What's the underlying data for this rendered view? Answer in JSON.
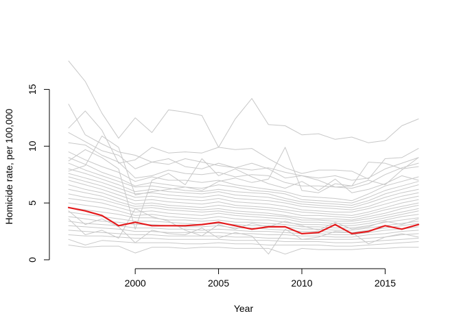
{
  "chart_data": {
    "type": "line",
    "title": "",
    "xlabel": "Year",
    "ylabel": "Homicide rate, per 100,000",
    "xlim": [
      1996,
      2017
    ],
    "ylim": [
      0,
      17.5
    ],
    "x_ticks": [
      2000,
      2005,
      2010,
      2015
    ],
    "y_ticks": [
      0,
      5,
      10,
      15
    ],
    "x": [
      1996,
      1997,
      1998,
      1999,
      2000,
      2001,
      2002,
      2003,
      2004,
      2005,
      2006,
      2007,
      2008,
      2009,
      2010,
      2011,
      2012,
      2013,
      2014,
      2015,
      2016,
      2017
    ],
    "colors": {
      "background": "#c8c8c8",
      "highlight": "#e41a1c"
    },
    "highlight_series": {
      "name": "highlighted",
      "values": [
        4.6,
        4.3,
        3.9,
        3.0,
        3.3,
        3.0,
        3.0,
        3.0,
        3.1,
        3.3,
        3.0,
        2.7,
        2.9,
        2.9,
        2.3,
        2.4,
        3.1,
        2.3,
        2.5,
        3.0,
        2.7,
        3.1
      ]
    },
    "background_series": [
      {
        "name": "s1",
        "values": [
          17.5,
          15.7,
          12.9,
          10.7,
          12.5,
          11.2,
          13.2,
          13.0,
          12.7,
          9.9,
          12.4,
          14.2,
          11.9,
          11.8,
          11.0,
          11.1,
          10.6,
          10.8,
          10.3,
          10.5,
          11.8,
          12.4
        ]
      },
      {
        "name": "s2",
        "values": [
          13.7,
          11.0,
          10.2,
          9.5,
          9.2,
          8.6,
          8.4,
          8.9,
          8.6,
          8.3,
          8.1,
          7.9,
          8.1,
          7.7,
          7.4,
          7.2,
          7.4,
          7.0,
          7.2,
          8.0,
          8.5,
          9.0
        ]
      },
      {
        "name": "s3",
        "values": [
          11.6,
          13.1,
          11.4,
          8.5,
          8.8,
          9.9,
          9.4,
          9.5,
          9.4,
          9.9,
          9.7,
          9.8,
          8.9,
          8.1,
          7.6,
          7.9,
          7.9,
          7.8,
          7.1,
          8.9,
          9.0,
          9.8
        ]
      },
      {
        "name": "s4",
        "values": [
          11.2,
          10.4,
          9.6,
          9.2,
          8.0,
          8.6,
          8.9,
          8.2,
          8.0,
          8.5,
          8.1,
          8.5,
          8.0,
          7.2,
          7.4,
          7.0,
          6.4,
          6.5,
          8.6,
          8.5,
          8.0,
          8.2
        ]
      },
      {
        "name": "s5",
        "values": [
          10.3,
          10.1,
          9.2,
          8.6,
          7.2,
          7.4,
          7.9,
          7.6,
          7.5,
          7.7,
          7.3,
          7.5,
          7.4,
          6.8,
          6.5,
          6.5,
          6.4,
          6.3,
          6.7,
          7.5,
          8.1,
          8.5
        ]
      },
      {
        "name": "s6",
        "values": [
          9.5,
          8.8,
          8.2,
          7.7,
          6.9,
          7.3,
          7.0,
          7.0,
          6.8,
          7.0,
          6.6,
          6.4,
          6.2,
          6.0,
          5.6,
          5.5,
          5.4,
          5.2,
          5.8,
          6.5,
          6.9,
          7.3
        ]
      },
      {
        "name": "s7",
        "values": [
          9.0,
          8.4,
          7.7,
          7.2,
          6.5,
          6.8,
          6.6,
          6.4,
          6.3,
          6.6,
          6.4,
          6.1,
          6.0,
          5.8,
          5.3,
          5.2,
          5.1,
          5.0,
          5.5,
          6.1,
          6.5,
          6.9
        ]
      },
      {
        "name": "s8",
        "values": [
          8.5,
          7.9,
          7.4,
          6.9,
          6.4,
          6.5,
          6.3,
          6.1,
          6.0,
          6.2,
          6.0,
          5.9,
          5.8,
          5.4,
          5.1,
          5.0,
          4.9,
          4.8,
          5.2,
          5.8,
          6.2,
          6.6
        ]
      },
      {
        "name": "s9",
        "values": [
          8.0,
          7.6,
          7.1,
          6.6,
          6.0,
          6.2,
          6.0,
          5.9,
          5.8,
          6.0,
          5.7,
          5.6,
          5.5,
          5.2,
          4.9,
          4.8,
          4.7,
          4.6,
          5.0,
          5.5,
          5.9,
          6.2
        ]
      },
      {
        "name": "s10",
        "values": [
          7.6,
          7.2,
          6.8,
          6.3,
          5.8,
          5.9,
          5.7,
          5.6,
          5.5,
          5.7,
          5.4,
          5.3,
          5.2,
          5.0,
          4.7,
          4.6,
          4.5,
          4.4,
          4.7,
          5.2,
          5.6,
          5.9
        ]
      },
      {
        "name": "s11",
        "values": [
          7.3,
          6.9,
          6.5,
          6.0,
          5.5,
          5.6,
          5.4,
          5.3,
          5.2,
          5.4,
          5.1,
          5.0,
          4.9,
          4.7,
          4.4,
          4.3,
          4.2,
          4.2,
          4.5,
          4.9,
          5.3,
          5.6
        ]
      },
      {
        "name": "s12",
        "values": [
          7.0,
          6.6,
          6.2,
          5.7,
          5.2,
          5.3,
          5.1,
          5.0,
          4.9,
          5.1,
          4.8,
          4.7,
          4.6,
          4.4,
          4.2,
          4.1,
          4.0,
          3.9,
          4.2,
          4.6,
          5.0,
          5.3
        ]
      },
      {
        "name": "s13",
        "values": [
          6.6,
          6.2,
          5.9,
          5.4,
          4.9,
          5.0,
          4.8,
          4.7,
          4.6,
          4.8,
          4.6,
          4.5,
          4.4,
          4.2,
          3.9,
          3.9,
          3.8,
          3.7,
          4.0,
          4.4,
          4.7,
          5.0
        ]
      },
      {
        "name": "s14",
        "values": [
          6.2,
          5.9,
          5.6,
          5.1,
          4.7,
          4.8,
          4.6,
          4.5,
          4.4,
          4.5,
          4.3,
          4.2,
          4.1,
          3.9,
          3.7,
          3.6,
          3.6,
          3.5,
          3.8,
          4.1,
          4.5,
          4.8
        ]
      },
      {
        "name": "s15",
        "values": [
          5.8,
          5.5,
          5.3,
          4.9,
          4.5,
          4.6,
          4.4,
          4.3,
          4.2,
          4.3,
          4.1,
          4.0,
          3.9,
          3.8,
          3.5,
          3.5,
          3.4,
          3.4,
          3.6,
          3.9,
          4.2,
          4.5
        ]
      },
      {
        "name": "s16",
        "values": [
          5.4,
          5.2,
          5.0,
          4.6,
          4.2,
          4.3,
          4.1,
          4.0,
          3.9,
          4.1,
          3.9,
          3.8,
          3.7,
          3.6,
          3.3,
          3.3,
          3.2,
          3.2,
          3.4,
          3.7,
          4.0,
          4.3
        ]
      },
      {
        "name": "s17",
        "values": [
          5.0,
          4.8,
          4.6,
          4.3,
          3.9,
          4.0,
          3.8,
          3.7,
          3.6,
          3.8,
          3.6,
          3.5,
          3.5,
          3.3,
          3.1,
          3.1,
          3.0,
          3.0,
          3.2,
          3.5,
          3.8,
          4.0
        ]
      },
      {
        "name": "s18",
        "values": [
          4.6,
          4.4,
          4.2,
          4.0,
          3.7,
          3.7,
          3.5,
          3.5,
          3.4,
          3.5,
          3.3,
          3.3,
          3.2,
          3.1,
          2.9,
          2.9,
          2.8,
          2.8,
          3.0,
          3.3,
          3.5,
          3.7
        ]
      },
      {
        "name": "s19",
        "values": [
          4.2,
          4.0,
          3.8,
          3.6,
          3.4,
          3.4,
          3.3,
          3.2,
          3.1,
          3.2,
          3.1,
          3.0,
          3.0,
          2.9,
          2.7,
          2.7,
          2.6,
          2.6,
          2.8,
          3.0,
          3.2,
          3.4
        ]
      },
      {
        "name": "s20",
        "values": [
          3.8,
          3.6,
          3.4,
          3.3,
          3.1,
          3.1,
          3.0,
          2.9,
          2.9,
          3.0,
          2.8,
          2.8,
          2.7,
          2.6,
          2.5,
          2.5,
          2.4,
          2.4,
          2.6,
          2.8,
          3.0,
          3.2
        ]
      },
      {
        "name": "s21",
        "values": [
          3.4,
          3.2,
          3.1,
          3.0,
          2.8,
          2.8,
          2.7,
          2.7,
          2.6,
          2.7,
          2.6,
          2.5,
          2.5,
          2.4,
          2.3,
          2.3,
          2.2,
          2.2,
          2.4,
          2.6,
          2.7,
          2.9
        ]
      },
      {
        "name": "s22",
        "values": [
          3.0,
          2.9,
          2.8,
          2.7,
          2.5,
          2.5,
          2.4,
          2.4,
          2.4,
          2.4,
          2.3,
          2.3,
          2.2,
          2.2,
          2.1,
          2.1,
          2.0,
          2.0,
          2.2,
          2.3,
          2.5,
          2.6
        ]
      },
      {
        "name": "s23",
        "values": [
          2.6,
          2.5,
          2.4,
          2.3,
          2.2,
          2.2,
          2.1,
          2.1,
          2.1,
          2.1,
          2.0,
          2.0,
          1.9,
          1.9,
          1.8,
          1.8,
          1.8,
          1.8,
          1.9,
          2.0,
          2.2,
          2.3
        ]
      },
      {
        "name": "s24",
        "values": [
          2.2,
          2.1,
          2.1,
          2.0,
          1.9,
          1.9,
          1.8,
          1.8,
          1.8,
          1.8,
          1.7,
          1.7,
          1.7,
          1.6,
          1.6,
          1.6,
          1.5,
          1.5,
          1.6,
          1.7,
          1.8,
          1.9
        ]
      },
      {
        "name": "s25",
        "values": [
          1.8,
          1.3,
          1.7,
          1.6,
          1.5,
          1.5,
          1.5,
          1.4,
          1.4,
          1.5,
          1.4,
          1.4,
          1.3,
          1.3,
          1.3,
          1.3,
          1.2,
          1.2,
          1.3,
          1.4,
          1.5,
          1.6
        ]
      },
      {
        "name": "s26",
        "values": [
          1.3,
          1.1,
          1.2,
          1.2,
          0.6,
          1.1,
          1.1,
          1.0,
          1.1,
          1.1,
          1.0,
          1.0,
          1.0,
          0.5,
          1.0,
          0.9,
          0.9,
          0.9,
          1.0,
          1.0,
          1.1,
          1.1
        ]
      },
      {
        "name": "s27",
        "values": [
          7.8,
          8.3,
          10.9,
          9.9,
          5.7,
          6.0,
          6.2,
          6.4,
          6.1,
          6.9,
          7.2,
          6.8,
          7.1,
          9.9,
          6.1,
          5.9,
          6.7,
          6.5,
          7.0,
          6.6,
          7.9,
          9.0
        ]
      },
      {
        "name": "s28",
        "values": [
          8.7,
          9.7,
          9.0,
          8.0,
          2.7,
          7.0,
          7.6,
          6.6,
          8.9,
          7.4,
          8.0,
          7.3,
          6.7,
          6.3,
          6.9,
          6.1,
          7.1,
          5.9,
          6.2,
          6.7,
          7.4,
          7.0
        ]
      },
      {
        "name": "s29",
        "values": [
          4.3,
          3.1,
          3.6,
          2.9,
          1.5,
          2.6,
          2.3,
          2.2,
          2.8,
          1.9,
          2.4,
          2.1,
          0.5,
          2.7,
          1.8,
          2.0,
          2.5,
          2.4,
          1.4,
          2.0,
          2.3,
          2.0
        ]
      },
      {
        "name": "s30",
        "values": [
          3.6,
          2.2,
          2.6,
          1.9,
          4.5,
          3.8,
          3.4,
          2.6,
          2.1,
          3.1,
          2.7,
          3.2,
          2.9,
          3.4,
          3.0,
          2.6,
          3.3,
          2.7,
          2.9,
          3.4,
          3.1,
          3.6
        ]
      }
    ]
  }
}
